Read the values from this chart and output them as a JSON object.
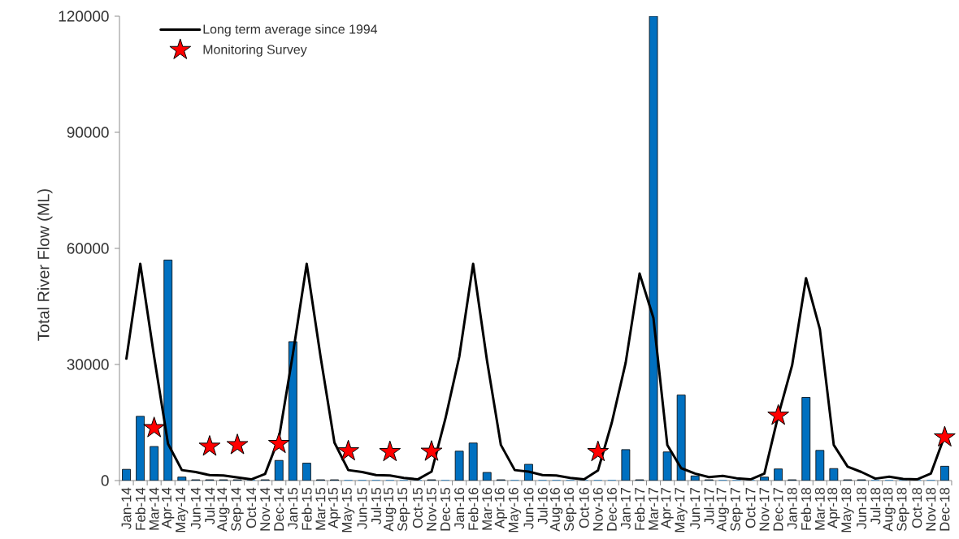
{
  "chart_data": {
    "type": "bar",
    "ylabel": "Total River Flow (ML)",
    "categories": [
      "Jan-14",
      "Feb-14",
      "Mar-14",
      "Apr-14",
      "May-14",
      "Jun-14",
      "Jul-14",
      "Aug-14",
      "Sep-14",
      "Oct-14",
      "Nov-14",
      "Dec-14",
      "Jan-15",
      "Feb-15",
      "Mar-15",
      "Apr-15",
      "May-15",
      "Jun-15",
      "Jul-15",
      "Aug-15",
      "Sep-15",
      "Oct-15",
      "Nov-15",
      "Dec-15",
      "Jan-16",
      "Feb-16",
      "Mar-16",
      "Apr-16",
      "May-16",
      "Jun-16",
      "Jul-16",
      "Aug-16",
      "Sep-16",
      "Oct-16",
      "Nov-16",
      "Dec-16",
      "Jan-17",
      "Feb-17",
      "Mar-17",
      "Apr-17",
      "May-17",
      "Jun-17",
      "Jul-17",
      "Aug-17",
      "Sep-17",
      "Oct-17",
      "Nov-17",
      "Dec-17",
      "Jan-18",
      "Feb-18",
      "Mar-18",
      "Apr-18",
      "May-18",
      "Jun-18",
      "Jul-18",
      "Aug-18",
      "Sep-18",
      "Oct-18",
      "Nov-18",
      "Dec-18"
    ],
    "ylim": [
      0,
      120000
    ],
    "yticks": [
      0,
      30000,
      60000,
      90000,
      120000
    ],
    "legend": "top left",
    "series": [
      {
        "color": "#0070c0",
        "values": [
          2900,
          16600,
          8800,
          57000,
          900,
          200,
          200,
          200,
          200,
          0,
          200,
          5200,
          35900,
          4500,
          200,
          200,
          0,
          0,
          0,
          0,
          0,
          0,
          200,
          0,
          7600,
          9700,
          2100,
          200,
          0,
          4200,
          0,
          0,
          0,
          0,
          0,
          0,
          8000,
          200,
          120000,
          7400,
          22100,
          1200,
          200,
          0,
          0,
          0,
          900,
          3000,
          200,
          21500,
          7800,
          3100,
          200,
          200,
          0,
          0,
          0,
          0,
          0,
          3700
        ]
      },
      {
        "type": "line",
        "name": "Long term average since 1994",
        "color": "#000000",
        "line_style": "solid",
        "values": [
          31500,
          56000,
          32000,
          9500,
          2700,
          2200,
          1400,
          1300,
          800,
          300,
          1700,
          11000,
          32600,
          56000,
          32000,
          9800,
          2700,
          2200,
          1400,
          1300,
          700,
          300,
          2300,
          16000,
          32000,
          56000,
          31000,
          9200,
          2700,
          2300,
          1400,
          1300,
          700,
          300,
          2600,
          15000,
          30500,
          53500,
          42000,
          9200,
          3200,
          1800,
          900,
          1200,
          600,
          300,
          1800,
          16800,
          29800,
          52300,
          39100,
          9200,
          3600,
          2200,
          500,
          1000,
          400,
          300,
          1800,
          11600
        ]
      },
      {
        "type": "scatter",
        "name": "Monitoring Survey",
        "color": "#ff0000",
        "marker": "star",
        "x": [
          "Mar-14",
          "Jul-14",
          "Sep-14",
          "Dec-14",
          "May-15",
          "Aug-15",
          "Nov-15",
          "Nov-16",
          "Dec-17",
          "Dec-18"
        ],
        "values": [
          13600,
          8800,
          9200,
          9500,
          7600,
          7400,
          7500,
          7400,
          16800,
          11200
        ]
      }
    ]
  }
}
